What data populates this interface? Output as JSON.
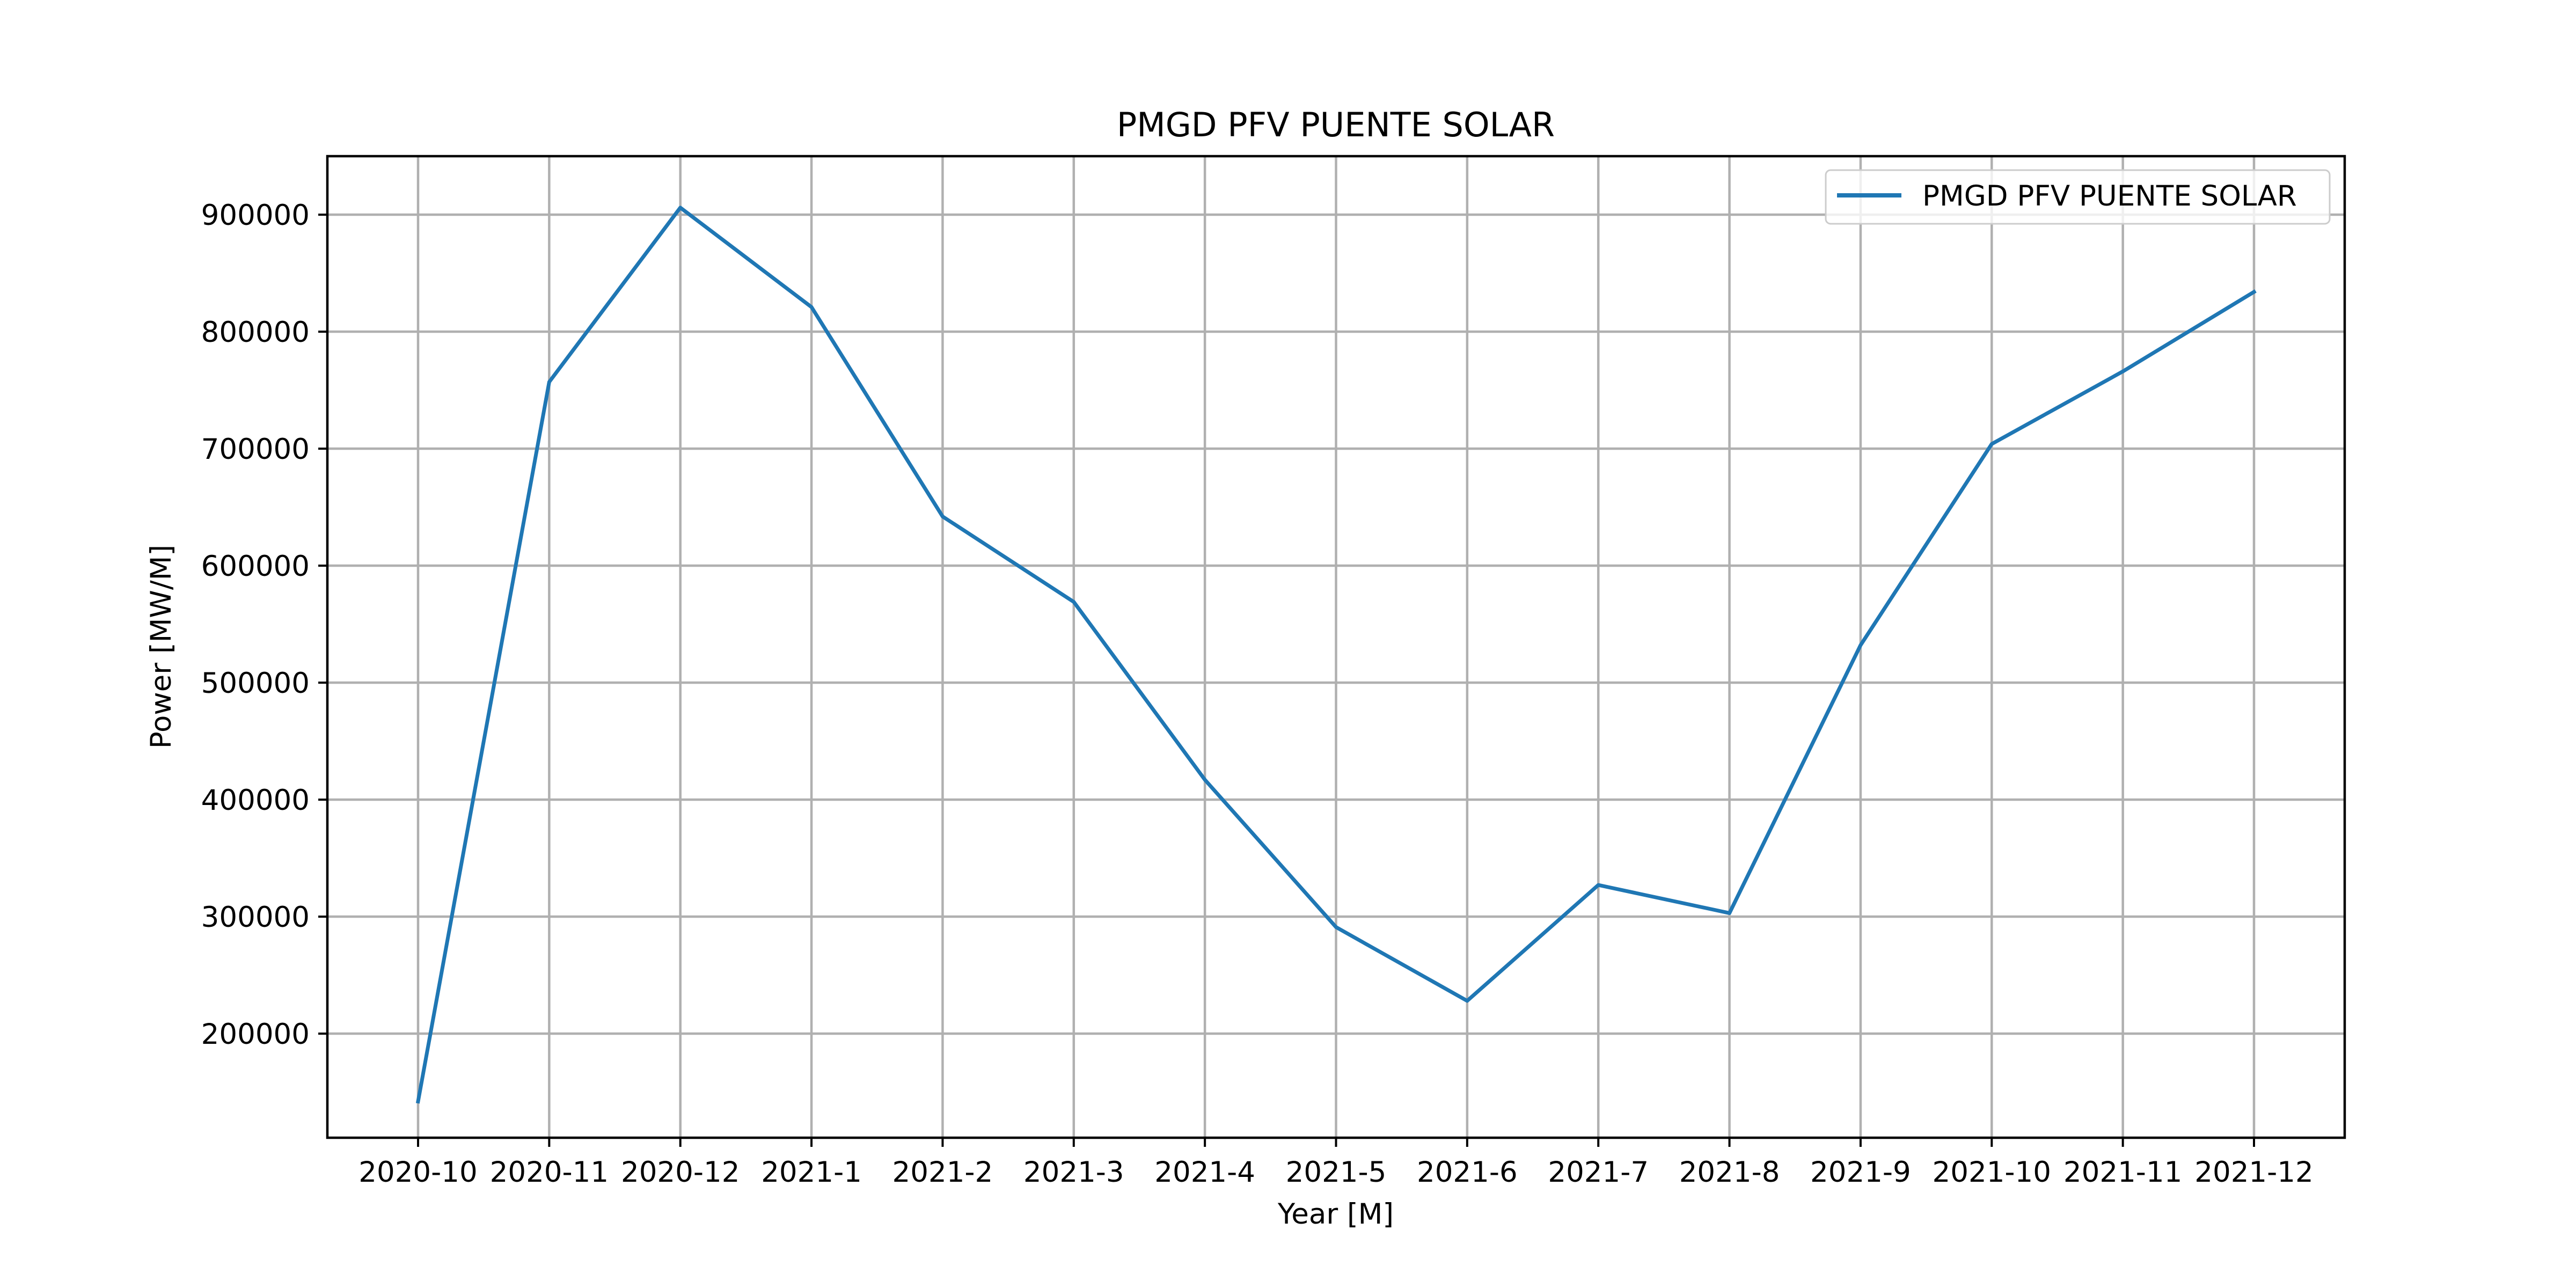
{
  "chart_data": {
    "type": "line",
    "title": "PMGD PFV PUENTE SOLAR",
    "xlabel": "Year [M]",
    "ylabel": "Power [MW/M]",
    "categories": [
      "2020-10",
      "2020-11",
      "2020-12",
      "2021-1",
      "2021-2",
      "2021-3",
      "2021-4",
      "2021-5",
      "2021-6",
      "2021-7",
      "2021-8",
      "2021-9",
      "2021-10",
      "2021-11",
      "2021-12"
    ],
    "series": [
      {
        "name": "PMGD PFV PUENTE SOLAR",
        "color": "#1f77b4",
        "values": [
          142000,
          757000,
          906000,
          821000,
          642000,
          569000,
          417000,
          291000,
          228000,
          327000,
          303000,
          532000,
          704000,
          766000,
          834000
        ]
      }
    ],
    "yticks": [
      200000,
      300000,
      400000,
      500000,
      600000,
      700000,
      800000,
      900000
    ],
    "ylim": [
      111000,
      950000
    ],
    "grid": true,
    "legend_position": "top-right"
  }
}
